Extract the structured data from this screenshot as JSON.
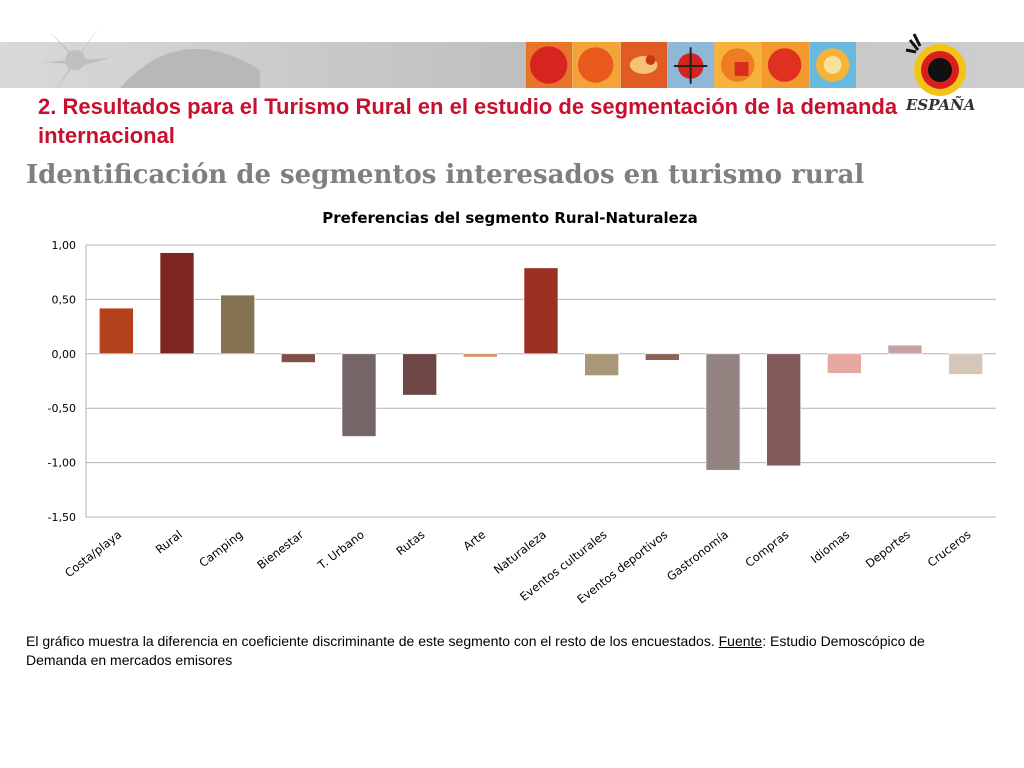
{
  "slide": {
    "title": "2. Resultados para el Turismo Rural en el estudio de segmentación de la demanda internacional",
    "subtitle": "Identificación de segmentos interesados en turismo rural",
    "footer_pre": "El gráfico muestra la diferencia en coeficiente discriminante de este segmento con el resto de los encuestados. ",
    "footer_source_label": "Fuente",
    "footer_post": ": Estudio Demoscópico de Demanda en mercados emisores"
  },
  "logo": {
    "text": "ESPAÑA"
  },
  "chart_data": {
    "type": "bar",
    "title": "Preferencias del segmento Rural-Naturaleza",
    "categories": [
      "Costa/playa",
      "Rural",
      "Camping",
      "Bienestar",
      "T. Urbano",
      "Rutas",
      "Arte",
      "Naturaleza",
      "Eventos culturales",
      "Eventos deportivos",
      "Gastronomía",
      "Compras",
      "Idiomas",
      "Deportes",
      "Cruceros"
    ],
    "values": [
      0.42,
      0.93,
      0.54,
      -0.08,
      -0.76,
      -0.38,
      -0.03,
      0.79,
      -0.2,
      -0.06,
      -1.07,
      -1.03,
      -0.18,
      0.08,
      -0.19
    ],
    "colors": [
      "#b5411c",
      "#7f2520",
      "#857354",
      "#7d5148",
      "#756567",
      "#6f4747",
      "#d98f66",
      "#9a2f22",
      "#a99877",
      "#8c6259",
      "#938482",
      "#825b5b",
      "#e8a8a2",
      "#c8a2a2",
      "#d5c6b8"
    ],
    "ylim": [
      -1.5,
      1.0
    ],
    "yticks": [
      1.0,
      0.5,
      0.0,
      -0.5,
      -1.0,
      -1.5
    ],
    "ytick_labels": [
      "1,00",
      "0,50",
      "0,00",
      "-0,50",
      "-1,00",
      "-1,50"
    ],
    "xlabel": "",
    "ylabel": "",
    "grid": true,
    "legend": "none"
  }
}
